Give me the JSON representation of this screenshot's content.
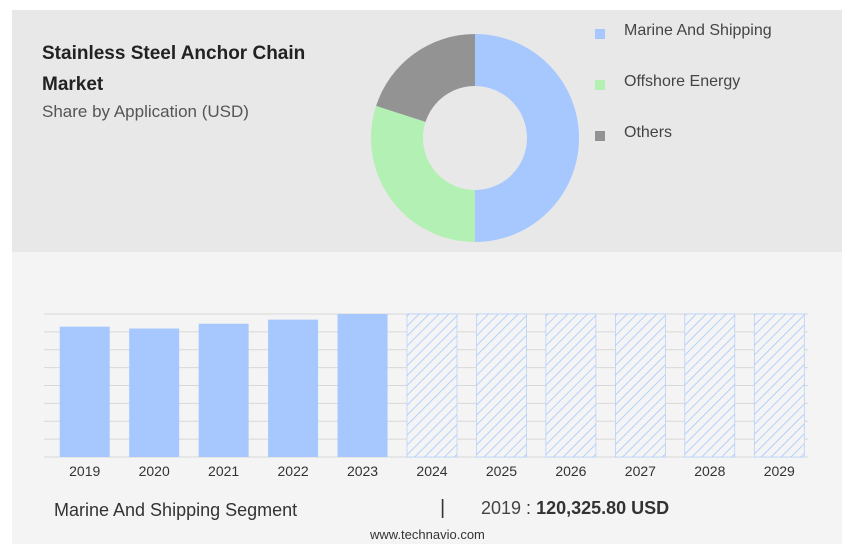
{
  "header": {
    "title": "Stainless Steel Anchor Chain Market",
    "subtitle": "Share by Application (USD)"
  },
  "colors": {
    "marine": "#a6c8ff",
    "offshore": "#b3f0b3",
    "others": "#939393",
    "forecast_hatch": "#a6c8ff",
    "gridline": "#d8d8d8"
  },
  "legend": [
    {
      "label": "Marine And Shipping",
      "color": "#a6c8ff"
    },
    {
      "label": "Offshore Energy",
      "color": "#b3f0b3"
    },
    {
      "label": "Others",
      "color": "#939393"
    }
  ],
  "chart_data": [
    {
      "type": "pie",
      "variant": "donut",
      "slices": [
        {
          "label": "Marine And Shipping",
          "value": 50,
          "color": "#a6c8ff"
        },
        {
          "label": "Offshore Energy",
          "value": 30,
          "color": "#b3f0b3"
        },
        {
          "label": "Others",
          "value": 20,
          "color": "#939393"
        }
      ]
    },
    {
      "type": "bar",
      "categories": [
        "2019",
        "2020",
        "2021",
        "2022",
        "2023",
        "2024",
        "2025",
        "2026",
        "2027",
        "2028",
        "2029"
      ],
      "values": [
        120325.8,
        118600,
        123000,
        126800,
        132000,
        132000,
        132000,
        132000,
        132000,
        132000,
        132000
      ],
      "forecast_from_index": 5,
      "ylim": [
        0,
        132000
      ],
      "grid": true,
      "xlabel": "",
      "ylabel": ""
    }
  ],
  "footer": {
    "segment_label": "Marine And Shipping Segment",
    "divider": "|",
    "year": "2019",
    "separator": " : ",
    "value": "120,325.80 USD"
  },
  "source": "www.technavio.com"
}
